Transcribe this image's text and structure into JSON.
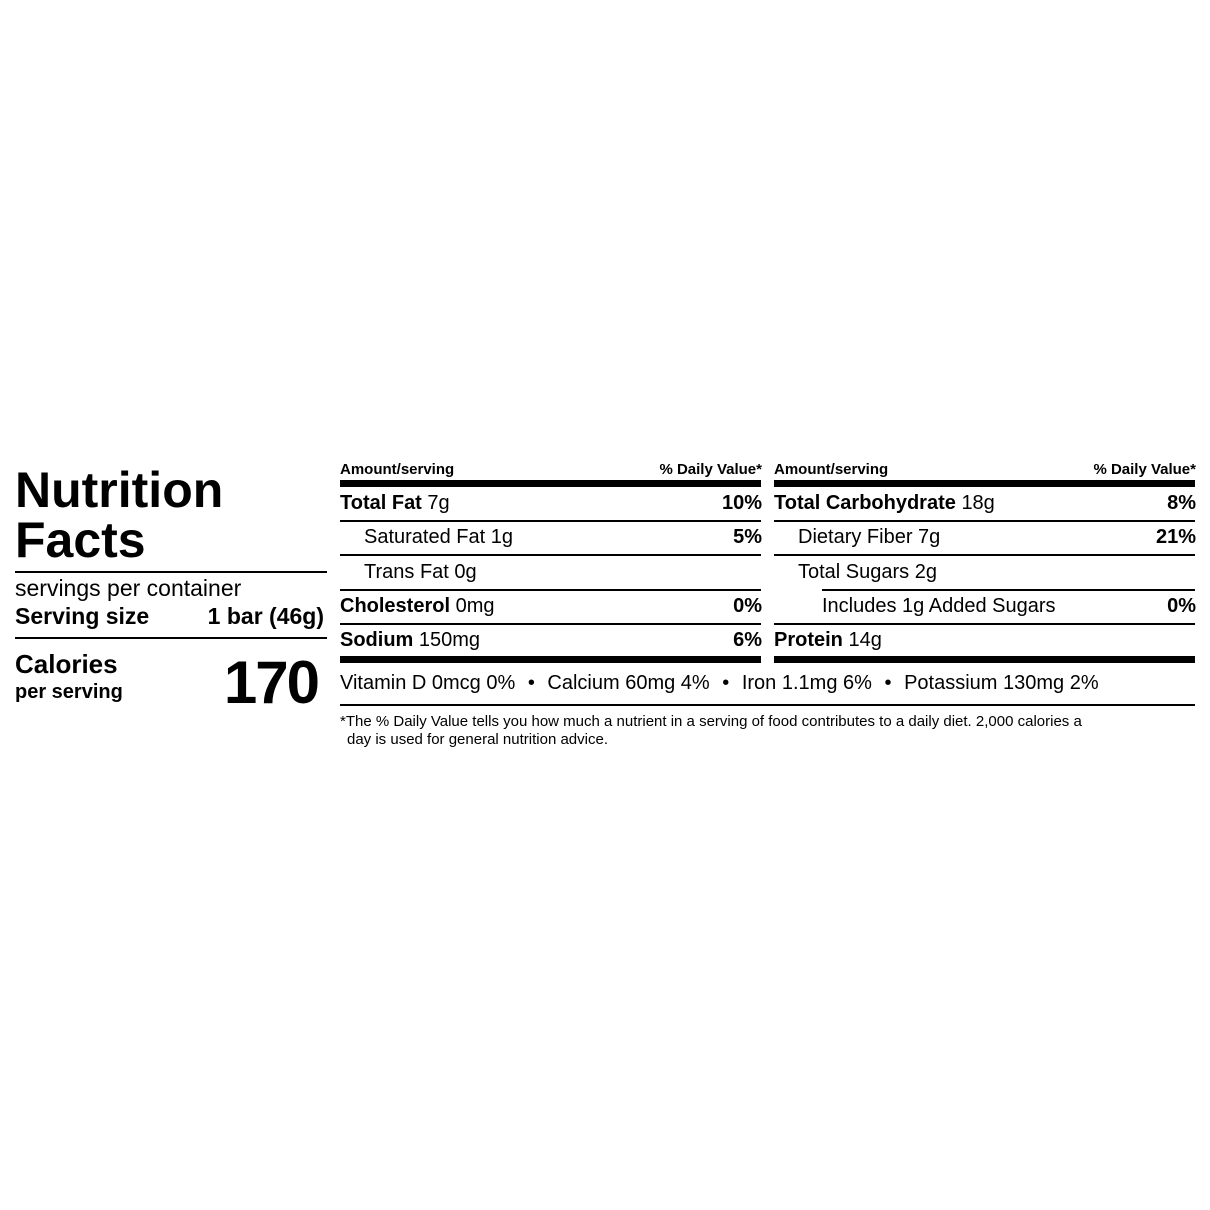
{
  "title_line1": "Nutrition",
  "title_line2": "Facts",
  "servings_per_container": "servings per container",
  "serving_size_label": "Serving size",
  "serving_size_value": "1 bar (46g)",
  "calories_label": "Calories",
  "calories_sub": "per serving",
  "calories_value": "170",
  "header": {
    "amount": "Amount/serving",
    "dv": "% Daily Value*"
  },
  "left_rows": [
    {
      "name": "Total Fat",
      "amount": "7g",
      "dv": "10%"
    },
    {
      "name": "Saturated Fat",
      "amount": "1g",
      "dv": "5%"
    },
    {
      "name": "Trans Fat",
      "amount": "0g",
      "dv": ""
    },
    {
      "name": "Cholesterol",
      "amount": "0mg",
      "dv": "0%"
    },
    {
      "name": "Sodium",
      "amount": "150mg",
      "dv": "6%"
    }
  ],
  "right_rows": [
    {
      "name": "Total Carbohydrate",
      "amount": "18g",
      "dv": "8%"
    },
    {
      "name": "Dietary Fiber",
      "amount": "7g",
      "dv": "21%"
    },
    {
      "name": "Total Sugars",
      "amount": "2g",
      "dv": ""
    },
    {
      "name": "Includes 1g Added Sugars",
      "amount": "",
      "dv": "0%"
    },
    {
      "name": "Protein",
      "amount": "14g",
      "dv": ""
    }
  ],
  "micronutrients": [
    "Vitamin D 0mcg 0%",
    "Calcium 60mg 4%",
    "Iron 1.1mg 6%",
    "Potassium 130mg 2%"
  ],
  "separator": "•",
  "footnote_line1": "*The % Daily Value tells you how much a nutrient in a serving of food contributes to a daily diet. 2,000 calories a",
  "footnote_line2": "day is used for general nutrition advice."
}
